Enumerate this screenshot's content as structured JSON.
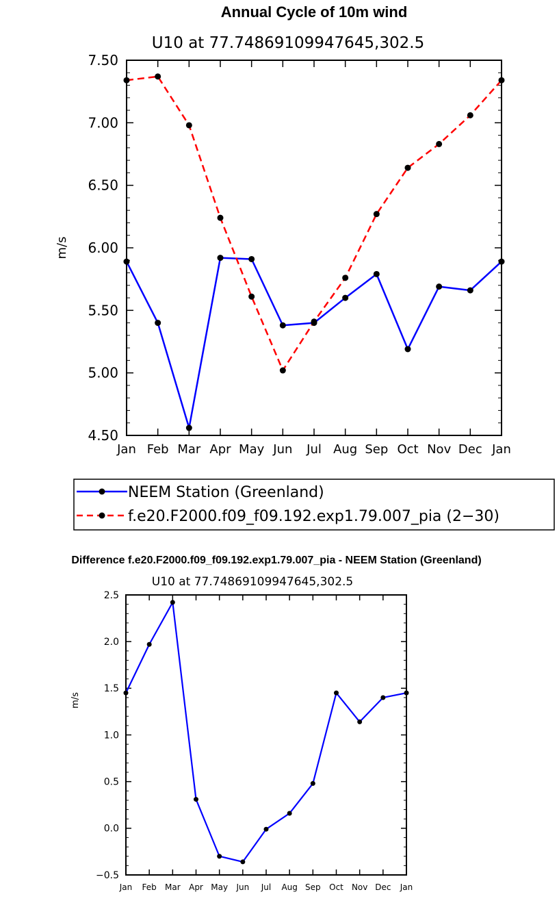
{
  "chart_data": [
    {
      "type": "line",
      "title": "Annual Cycle of 10m wind",
      "subtitle": "U10 at 77.74869109947645,302.5",
      "xlabel": "",
      "ylabel": "m/s",
      "categories": [
        "Jan",
        "Feb",
        "Mar",
        "Apr",
        "May",
        "Jun",
        "Jul",
        "Aug",
        "Sep",
        "Oct",
        "Nov",
        "Dec",
        "Jan"
      ],
      "ylim": [
        4.5,
        7.5
      ],
      "yticks": [
        "4.50",
        "5.00",
        "5.50",
        "6.00",
        "6.50",
        "7.00",
        "7.50"
      ],
      "grid": false,
      "legend_position": "bottom",
      "series": [
        {
          "name": "NEEM Station (Greenland)",
          "color": "#0000ff",
          "style": "solid",
          "values": [
            5.89,
            5.4,
            4.56,
            5.92,
            5.91,
            5.38,
            5.4,
            5.6,
            5.79,
            5.19,
            5.69,
            5.66,
            5.89
          ]
        },
        {
          "name": "f.e20.F2000.f09_f09.192.exp1.79.007_pia (2−30)",
          "color": "#ff0000",
          "style": "dashed",
          "values": [
            7.34,
            7.37,
            6.98,
            6.24,
            5.61,
            5.02,
            5.41,
            5.76,
            6.27,
            6.64,
            6.83,
            7.06,
            7.34
          ]
        }
      ]
    },
    {
      "type": "line",
      "title": "Difference f.e20.F2000.f09_f09.192.exp1.79.007_pia - NEEM Station (Greenland)",
      "subtitle": "U10 at 77.74869109947645,302.5",
      "xlabel": "",
      "ylabel": "m/s",
      "categories": [
        "Jan",
        "Feb",
        "Mar",
        "Apr",
        "May",
        "Jun",
        "Jul",
        "Aug",
        "Sep",
        "Oct",
        "Nov",
        "Dec",
        "Jan"
      ],
      "ylim": [
        -0.5,
        2.5
      ],
      "yticks": [
        "−0.5",
        "0.0",
        "0.5",
        "1.0",
        "1.5",
        "2.0",
        "2.5"
      ],
      "grid": false,
      "series": [
        {
          "color": "#0000ff",
          "style": "solid",
          "values": [
            1.45,
            1.97,
            2.42,
            0.31,
            -0.3,
            -0.36,
            -0.01,
            0.16,
            0.48,
            1.45,
            1.14,
            1.4,
            1.45
          ]
        }
      ]
    }
  ]
}
